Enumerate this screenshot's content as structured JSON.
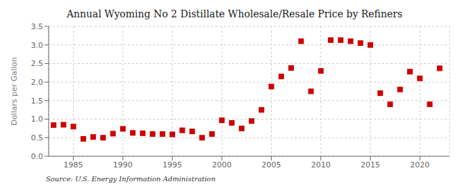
{
  "chart_data": {
    "type": "scatter",
    "title": "Annual Wyoming No 2 Distillate Wholesale/Resale Price by Refiners",
    "ylabel": "Dollars per Gallon",
    "annotations": [
      "Source: U.S. Energy Information Administration"
    ],
    "x": [
      1983,
      1984,
      1985,
      1986,
      1987,
      1988,
      1989,
      1990,
      1991,
      1992,
      1993,
      1994,
      1995,
      1996,
      1997,
      1998,
      1999,
      2000,
      2001,
      2002,
      2003,
      2004,
      2005,
      2006,
      2007,
      2008,
      2009,
      2010,
      2011,
      2012,
      2013,
      2014,
      2015,
      2016,
      2017,
      2018,
      2019,
      2020,
      2021,
      2022
    ],
    "values": [
      0.84,
      0.85,
      0.8,
      0.47,
      0.52,
      0.5,
      0.61,
      0.74,
      0.63,
      0.62,
      0.6,
      0.6,
      0.59,
      0.7,
      0.67,
      0.5,
      0.6,
      0.97,
      0.9,
      0.75,
      0.95,
      1.25,
      1.88,
      2.15,
      2.38,
      3.1,
      1.75,
      2.3,
      3.13,
      3.13,
      3.1,
      3.05,
      3.0,
      1.7,
      1.4,
      1.8,
      2.28,
      2.1,
      1.4,
      2.37
    ],
    "color": "#cc0000",
    "marker": "square",
    "xlim": [
      1982.5,
      2023
    ],
    "xticks": [
      1985,
      1990,
      1995,
      2000,
      2005,
      2010,
      2015,
      2020
    ],
    "ylim": [
      0.0,
      3.5
    ],
    "yticks": [
      {
        "value": 0.0,
        "label": "0.0"
      },
      0.5,
      {
        "value": 1.0,
        "label": "1.0"
      },
      1.5,
      {
        "value": 2.0,
        "label": "2.0"
      },
      2.5,
      {
        "value": 3.0,
        "label": "3.0"
      },
      3.5
    ],
    "grid": true
  }
}
